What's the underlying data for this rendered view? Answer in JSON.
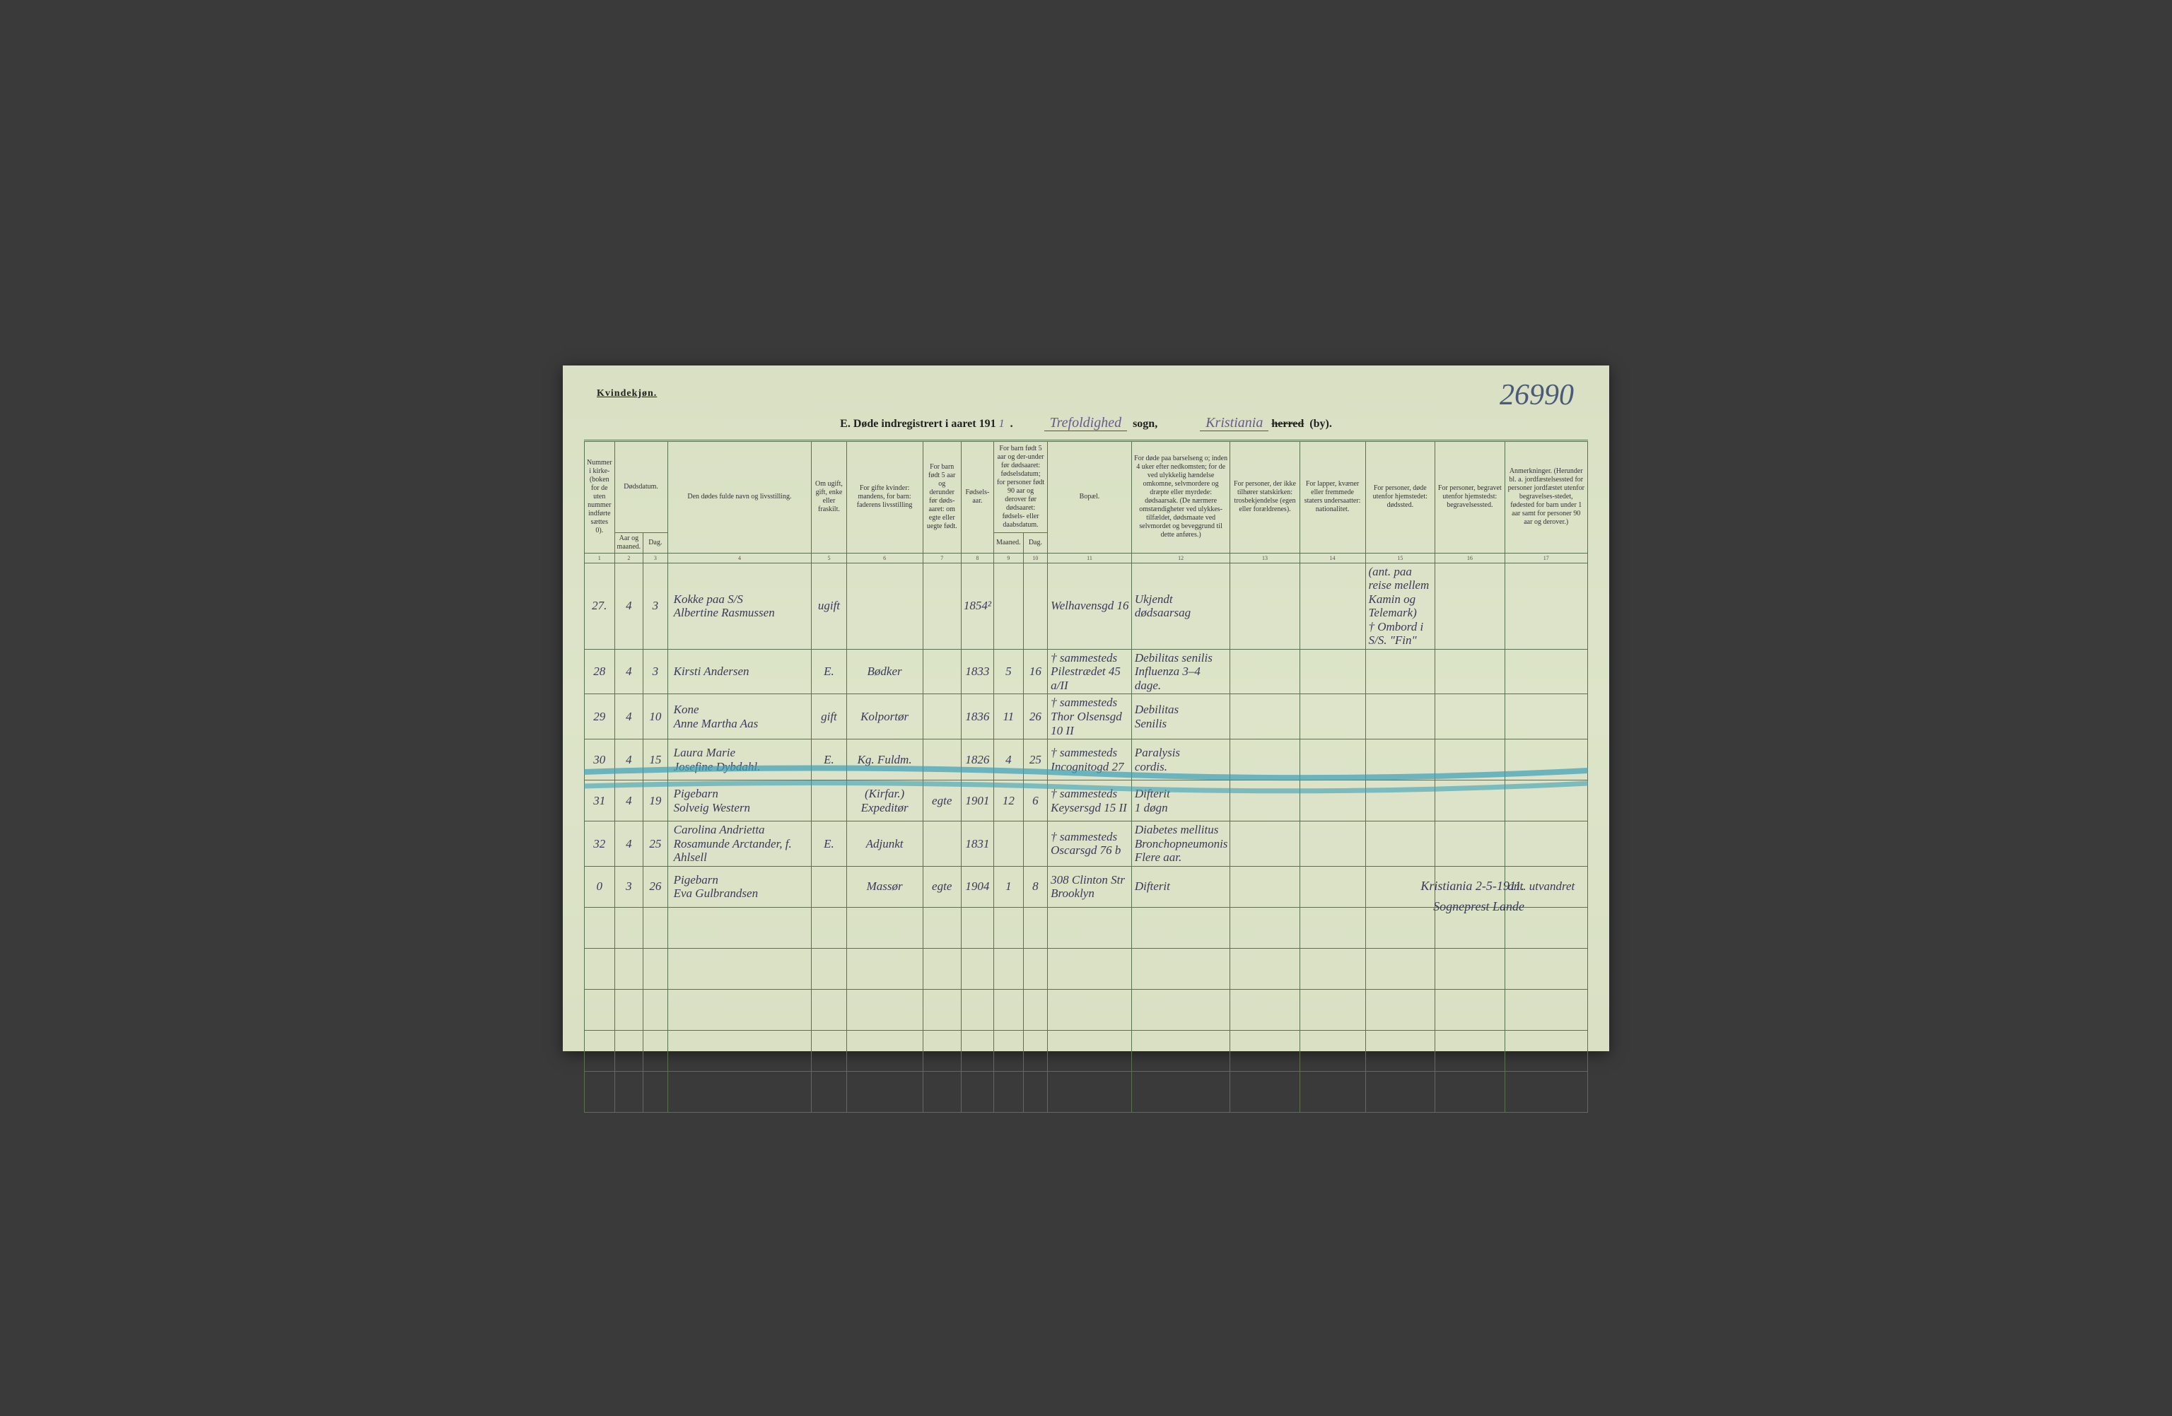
{
  "page": {
    "page_number": "26990",
    "gender_label": "Kvindekjøn.",
    "title_prefix": "E.  Døde indregistrert i aaret 191",
    "title_year_fill": "1",
    "sogn_fill": "Trefoldighed",
    "sogn_label": "sogn,",
    "by_fill": "Kristiania",
    "herred_struck": "herred",
    "by_label": "(by)."
  },
  "headers": {
    "c1": "Nummer i kirke-(boken for de uten nummer indførte sættes 0).",
    "c2a": "Dødsdatum.",
    "c2_aar": "Aar og maaned.",
    "c2_dag": "Dag.",
    "c4": "Den dødes fulde navn og livsstilling.",
    "c5": "Om ugift, gift, enke eller fraskilt.",
    "c6": "For gifte kvinder:\nmandens,\nfor barn:\nfaderens livsstilling",
    "c7": "For barn født 5 aar og derunder før døds-aaret: om egte eller uegte født.",
    "c8": "Fødsels-aar.",
    "c9": "For barn født 5 aar og der-under før dødsaaret: fødselsdatum; for personer født 90 aar og derover før dødsaaret: fødsels- eller daabsdatum.",
    "c9_m": "Maaned.",
    "c9_d": "Dag.",
    "c11": "Bopæl.",
    "c12": "For døde paa barselseng o; inden 4 uker efter nedkomsten; for de ved ulykkelig hændelse omkomne, selvmordere og dræpte eller myrdede: dødsaarsak. (De nærmere omstændigheter ved ulykkes-tilfældet, dødsmaate ved selvmordet og beveggrund til dette anføres.)",
    "c13": "For personer, der ikke tilhører statskirken: trosbekjendelse (egen eller forældrenes).",
    "c14": "For lapper, kvæner eller fremmede staters undersaatter: nationalitet.",
    "c15": "For personer, døde utenfor hjemstedet: dødssted.",
    "c16": "For personer, begravet utenfor hjemstedst: begravelsessted.",
    "c17": "Anmerkninger. (Herunder bl. a. jordfæstelsessted for personer jordfæstet utenfor begravelses-stedet, fødested for barn under 1 aar samt for personer 90 aar og derover.)"
  },
  "colnums": [
    "1",
    "2",
    "3",
    "4",
    "5",
    "6",
    "7",
    "8",
    "9",
    "10",
    "11",
    "12",
    "13",
    "14",
    "15",
    "16",
    "17"
  ],
  "rows": [
    {
      "num": "27.",
      "aar": "4",
      "dag": "3",
      "name_l1": "Kokke paa S/S",
      "name_l2": "Albertine Rasmussen",
      "om": "ugift",
      "mand": "",
      "barn5": "",
      "faar": "1854²",
      "fm": "",
      "fd": "",
      "bopel_l1": "",
      "bopel_l2": "Welhavensgd 16",
      "cause_l1": "Ukjendt",
      "cause_l2": "dødsaarsag",
      "dsted_l1": "(ant. paa reise mellem Kamin og Telemark)",
      "dsted_l2": "† Ombord i S/S. \"Fin\""
    },
    {
      "num": "28",
      "aar": "4",
      "dag": "3",
      "name_l1": "",
      "name_l2": "Kirsti Andersen",
      "om": "E.",
      "mand": "Bødker",
      "barn5": "",
      "faar": "1833",
      "fm": "5",
      "fd": "16",
      "bopel_l1": "† sammesteds",
      "bopel_l2": "Pilestrædet 45 a/II",
      "cause_l1": "Debilitas senilis",
      "cause_l2": "Influenza 3–4 dage.",
      "dsted_l1": "",
      "dsted_l2": ""
    },
    {
      "num": "29",
      "aar": "4",
      "dag": "10",
      "name_l1": "Kone",
      "name_l2": "Anne Martha Aas",
      "om": "gift",
      "mand": "Kolportør",
      "barn5": "",
      "faar": "1836",
      "fm": "11",
      "fd": "26",
      "bopel_l1": "† sammesteds",
      "bopel_l2": "Thor Olsensgd 10 II",
      "cause_l1": "Debilitas",
      "cause_l2": "Senilis",
      "dsted_l1": "",
      "dsted_l2": ""
    },
    {
      "num": "30",
      "aar": "4",
      "dag": "15",
      "name_l1": "Laura Marie",
      "name_l2": "Josefine Dybdahl.",
      "om": "E.",
      "mand": "Kg. Fuldm.",
      "barn5": "",
      "faar": "1826",
      "fm": "4",
      "fd": "25",
      "bopel_l1": "† sammesteds",
      "bopel_l2": "Incognitogd 27",
      "cause_l1": "Paralysis",
      "cause_l2": "cordis.",
      "dsted_l1": "",
      "dsted_l2": ""
    },
    {
      "num": "31",
      "aar": "4",
      "dag": "19",
      "name_l1": "Pigebarn",
      "name_l2": "Solveig Western",
      "om": "",
      "mand": "(Kirfar.) Expeditør",
      "barn5": "egte",
      "faar": "1901",
      "fm": "12",
      "fd": "6",
      "bopel_l1": "† sammesteds",
      "bopel_l2": "Keysersgd 15 II",
      "cause_l1": "Difterit",
      "cause_l2": "1 døgn",
      "dsted_l1": "",
      "dsted_l2": ""
    },
    {
      "num": "32",
      "aar": "4",
      "dag": "25",
      "name_l1": "Carolina Andrietta",
      "name_l2": "Rosamunde Arctander, f. Ahlsell",
      "om": "E.",
      "mand": "Adjunkt",
      "barn5": "",
      "faar": "1831",
      "fm": "",
      "fd": "",
      "bopel_l1": "† sammesteds",
      "bopel_l2": "Oscarsgd 76 b",
      "cause_l1": "Diabetes mellitus Bronchopneumonis",
      "cause_l2": "Flere aar.",
      "dsted_l1": "",
      "dsted_l2": ""
    },
    {
      "num": "0",
      "aar": "3",
      "dag": "26",
      "name_l1": "Pigebarn",
      "name_l2": "Eva Gulbrandsen",
      "om": "",
      "mand": "Massør",
      "barn5": "egte",
      "faar": "1904",
      "fm": "1",
      "fd": "8",
      "bopel_l1": "308 Clinton Str",
      "bopel_l2": "Brooklyn",
      "cause_l1": "",
      "cause_l2": "Difterit",
      "dsted_l1": "",
      "dsted_l2": "",
      "anm": "ant. utvandret"
    }
  ],
  "signature": {
    "line1": "Kristiania 2-5-1911.",
    "line2": "Sogneprest Lande"
  },
  "style": {
    "page_bg": "#d9e0c4",
    "border_color": "#5a7050",
    "print_text": "#333333",
    "handwriting_color": "#3a3a5a",
    "purple_ink": "#6a5a8c",
    "pagenum_color": "#4a5a78",
    "strike_color": "#3aa0b8"
  }
}
